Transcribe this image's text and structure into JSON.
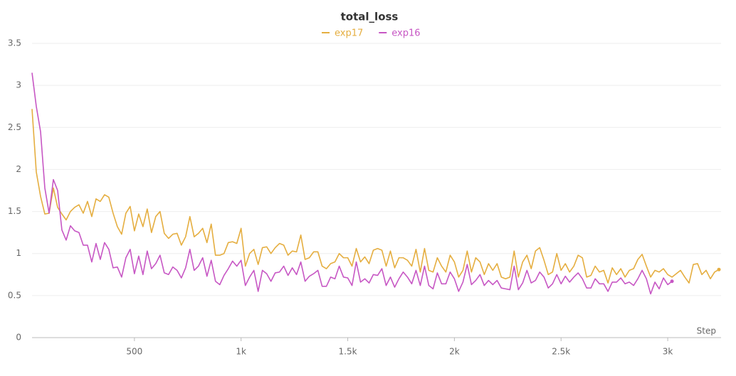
{
  "chart_data": {
    "type": "line",
    "title": "total_loss",
    "xlabel": "Step",
    "grid": true,
    "legend": "top",
    "xlim": [
      20,
      3250
    ],
    "xticks": [
      500,
      {
        "value": 1000,
        "label": "1k"
      },
      {
        "value": 1500,
        "label": "1.5k"
      },
      {
        "value": 2000,
        "label": "2k"
      },
      {
        "value": 2500,
        "label": "2.5k"
      },
      {
        "value": 3000,
        "label": "3k"
      }
    ],
    "ylim": [
      0,
      3.5
    ],
    "yticks": [
      0,
      0.5,
      1,
      1.5,
      2,
      2.5,
      3,
      3.5
    ],
    "x": [
      20,
      40,
      60,
      80,
      100,
      120,
      140,
      160,
      180,
      200,
      220,
      240,
      260,
      280,
      300,
      320,
      340,
      360,
      380,
      400,
      420,
      440,
      460,
      480,
      500,
      520,
      540,
      560,
      580,
      600,
      620,
      640,
      660,
      680,
      700,
      720,
      740,
      760,
      780,
      800,
      820,
      840,
      860,
      880,
      900,
      920,
      940,
      960,
      980,
      1000,
      1020,
      1040,
      1060,
      1080,
      1100,
      1120,
      1140,
      1160,
      1180,
      1200,
      1220,
      1240,
      1260,
      1280,
      1300,
      1320,
      1340,
      1360,
      1380,
      1400,
      1420,
      1440,
      1460,
      1480,
      1500,
      1520,
      1540,
      1560,
      1580,
      1600,
      1620,
      1640,
      1660,
      1680,
      1700,
      1720,
      1740,
      1760,
      1780,
      1800,
      1820,
      1840,
      1860,
      1880,
      1900,
      1920,
      1940,
      1960,
      1980,
      2000,
      2020,
      2040,
      2060,
      2080,
      2100,
      2120,
      2140,
      2160,
      2180,
      2200,
      2220,
      2240,
      2260,
      2280,
      2300,
      2320,
      2340,
      2360,
      2380,
      2400,
      2420,
      2440,
      2460,
      2480,
      2500,
      2520,
      2540,
      2560,
      2580,
      2600,
      2620,
      2640,
      2660,
      2680,
      2700,
      2720,
      2740,
      2760,
      2780,
      2800,
      2820,
      2840,
      2860,
      2880,
      2900,
      2920,
      2940,
      2960,
      2980,
      3000,
      3020,
      3040,
      3060,
      3080,
      3100,
      3120,
      3140,
      3160,
      3180,
      3200,
      3220,
      3240
    ],
    "series": [
      {
        "name": "exp17",
        "color": "#e5ae40",
        "values": [
          2.72,
          1.97,
          1.68,
          1.47,
          1.48,
          1.78,
          1.55,
          1.47,
          1.4,
          1.5,
          1.55,
          1.58,
          1.48,
          1.62,
          1.44,
          1.65,
          1.62,
          1.7,
          1.67,
          1.48,
          1.32,
          1.23,
          1.48,
          1.56,
          1.27,
          1.47,
          1.32,
          1.53,
          1.25,
          1.44,
          1.5,
          1.24,
          1.18,
          1.23,
          1.24,
          1.1,
          1.2,
          1.44,
          1.2,
          1.24,
          1.3,
          1.13,
          1.35,
          0.98,
          0.98,
          1.0,
          1.13,
          1.14,
          1.12,
          1.3,
          0.85,
          1.0,
          1.05,
          0.87,
          1.07,
          1.08,
          1.0,
          1.07,
          1.12,
          1.1,
          0.98,
          1.03,
          1.02,
          1.22,
          0.93,
          0.95,
          1.02,
          1.02,
          0.85,
          0.82,
          0.88,
          0.9,
          1.0,
          0.95,
          0.95,
          0.85,
          1.06,
          0.9,
          0.96,
          0.88,
          1.04,
          1.06,
          1.04,
          0.85,
          1.03,
          0.83,
          0.95,
          0.95,
          0.92,
          0.85,
          1.05,
          0.78,
          1.06,
          0.8,
          0.78,
          0.95,
          0.85,
          0.78,
          0.98,
          0.9,
          0.72,
          0.8,
          1.03,
          0.78,
          0.95,
          0.9,
          0.75,
          0.88,
          0.8,
          0.88,
          0.72,
          0.7,
          0.72,
          1.03,
          0.72,
          0.9,
          0.98,
          0.82,
          1.03,
          1.07,
          0.92,
          0.75,
          0.78,
          1.0,
          0.8,
          0.88,
          0.78,
          0.85,
          0.98,
          0.95,
          0.72,
          0.74,
          0.85,
          0.78,
          0.8,
          0.65,
          0.83,
          0.75,
          0.82,
          0.72,
          0.8,
          0.82,
          0.93,
          0.99,
          0.85,
          0.72,
          0.8,
          0.78,
          0.82,
          0.75,
          0.72,
          0.76,
          0.8,
          0.72,
          0.65,
          0.87,
          0.88,
          0.75,
          0.8,
          0.7,
          0.78,
          0.81
        ]
      },
      {
        "name": "exp16",
        "color": "#c757c4",
        "values": [
          3.15,
          2.75,
          2.45,
          1.78,
          1.48,
          1.88,
          1.75,
          1.28,
          1.16,
          1.33,
          1.27,
          1.25,
          1.1,
          1.1,
          0.9,
          1.12,
          0.93,
          1.13,
          1.05,
          0.83,
          0.84,
          0.72,
          0.95,
          1.05,
          0.76,
          0.97,
          0.75,
          1.03,
          0.82,
          0.88,
          0.98,
          0.77,
          0.75,
          0.84,
          0.8,
          0.71,
          0.83,
          1.05,
          0.8,
          0.85,
          0.95,
          0.73,
          0.92,
          0.67,
          0.63,
          0.74,
          0.82,
          0.91,
          0.85,
          0.92,
          0.62,
          0.72,
          0.8,
          0.55,
          0.8,
          0.76,
          0.67,
          0.77,
          0.78,
          0.85,
          0.74,
          0.83,
          0.75,
          0.9,
          0.67,
          0.73,
          0.76,
          0.8,
          0.61,
          0.61,
          0.72,
          0.7,
          0.85,
          0.72,
          0.71,
          0.62,
          0.9,
          0.66,
          0.7,
          0.65,
          0.75,
          0.74,
          0.82,
          0.62,
          0.72,
          0.6,
          0.7,
          0.78,
          0.72,
          0.64,
          0.8,
          0.62,
          0.85,
          0.62,
          0.58,
          0.77,
          0.64,
          0.64,
          0.78,
          0.7,
          0.55,
          0.66,
          0.87,
          0.63,
          0.68,
          0.75,
          0.62,
          0.68,
          0.63,
          0.68,
          0.59,
          0.58,
          0.57,
          0.85,
          0.57,
          0.65,
          0.8,
          0.65,
          0.68,
          0.78,
          0.72,
          0.59,
          0.64,
          0.75,
          0.64,
          0.73,
          0.66,
          0.72,
          0.77,
          0.7,
          0.59,
          0.59,
          0.7,
          0.64,
          0.64,
          0.55,
          0.66,
          0.66,
          0.71,
          0.64,
          0.66,
          0.62,
          0.7,
          0.8,
          0.7,
          0.52,
          0.66,
          0.58,
          0.71,
          0.63,
          0.67,
          null,
          null,
          null,
          null,
          null,
          null,
          null,
          null,
          null,
          null,
          null
        ]
      }
    ]
  }
}
